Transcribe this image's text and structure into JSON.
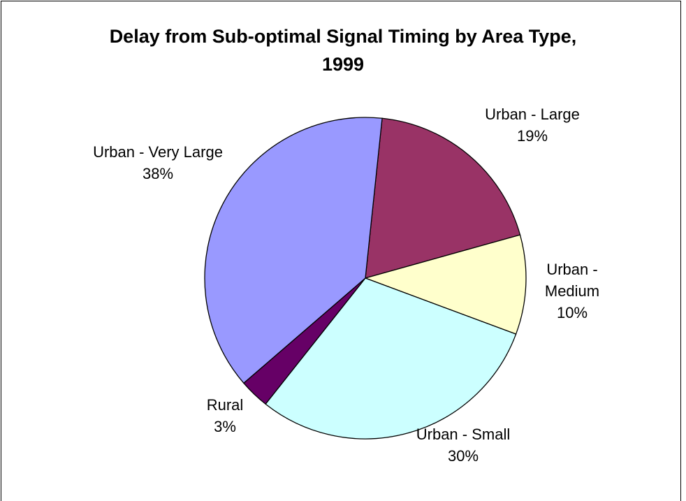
{
  "chart_data": {
    "type": "pie",
    "title": "Delay from Sub-optimal Signal Timing by Area Type, 1999",
    "categories": [
      "Urban - Large",
      "Urban - Medium",
      "Urban - Small",
      "Rural",
      "Urban - Very Large"
    ],
    "values": [
      19,
      10,
      30,
      3,
      38
    ],
    "value_labels": [
      "19%",
      "10%",
      "30%",
      "3%",
      "38%"
    ],
    "colors": [
      "#993366",
      "#ffffcc",
      "#ccffff",
      "#660066",
      "#9999ff"
    ]
  }
}
